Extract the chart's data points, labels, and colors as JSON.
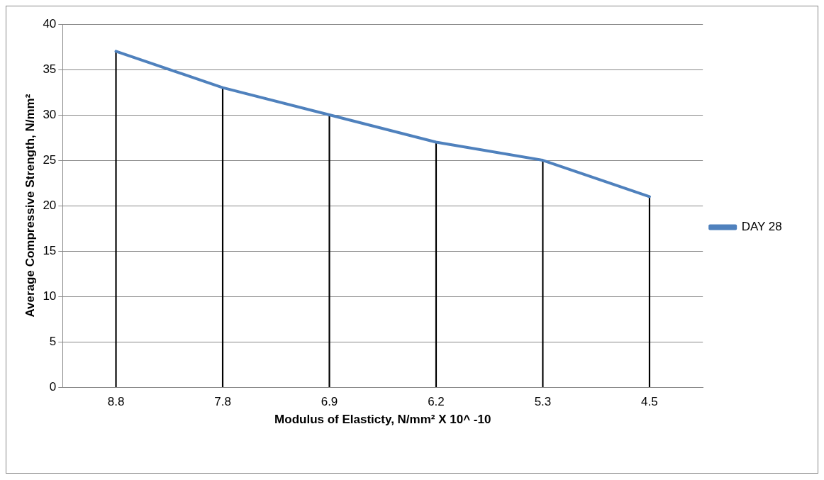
{
  "chart_data": {
    "type": "line",
    "xlabel": "Modulus of Elasticty, N/mm² X 10^ -10",
    "ylabel": "Average Compressive Strength, N/mm²",
    "categories": [
      "8.8",
      "7.8",
      "6.9",
      "6.2",
      "5.3",
      "4.5"
    ],
    "series": [
      {
        "name": "DAY 28",
        "color": "#4f81bd",
        "values": [
          37,
          33,
          30,
          27,
          25,
          21
        ]
      },
      {
        "type": "bar",
        "color": "#000000",
        "values": [
          37,
          33,
          30,
          27,
          25,
          21
        ]
      }
    ],
    "ylim": [
      0,
      40
    ],
    "yticks": [
      0,
      5,
      10,
      15,
      20,
      25,
      30,
      35,
      40
    ],
    "grid": "y",
    "legend": "right",
    "marker": "none",
    "line_style": "solid"
  }
}
